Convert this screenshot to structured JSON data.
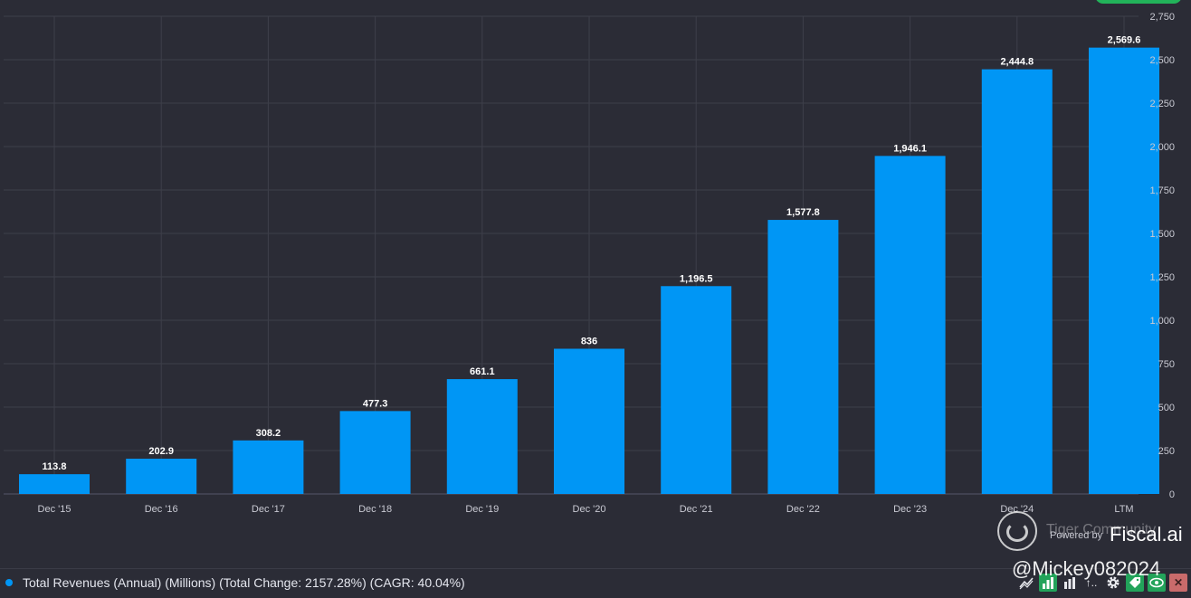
{
  "chart_data": {
    "type": "bar",
    "title": "",
    "categories": [
      "Dec '15",
      "Dec '16",
      "Dec '17",
      "Dec '18",
      "Dec '19",
      "Dec '20",
      "Dec '21",
      "Dec '22",
      "Dec '23",
      "Dec '24",
      "LTM"
    ],
    "values": [
      113.8,
      202.9,
      308.2,
      477.3,
      661.1,
      836,
      1196.5,
      1577.8,
      1946.1,
      2444.8,
      2569.6
    ],
    "value_labels": [
      "113.8",
      "202.9",
      "308.2",
      "477.3",
      "661.1",
      "836",
      "1,196.5",
      "1,577.8",
      "1,946.1",
      "2,444.8",
      "2,569.6"
    ],
    "series": [
      {
        "name": "Total Revenues (Annual) (Millions)",
        "color": "#0096f5"
      }
    ],
    "ylim": [
      0,
      2750
    ],
    "y_ticks": [
      0,
      250,
      500,
      750,
      1000,
      1250,
      1500,
      1750,
      2000,
      2250,
      2500,
      2750
    ],
    "y_tick_labels": [
      "0",
      "250",
      "500",
      "750",
      "1,000",
      "1,250",
      "1,500",
      "1,750",
      "2,000",
      "2,250",
      "2,500",
      "2,750"
    ],
    "y_axis_side": "right",
    "grid": true,
    "xlabel": "",
    "ylabel": ""
  },
  "legend": {
    "text": "Total Revenues (Annual) (Millions) (Total Change: 2157.28%) (CAGR: 40.04%)",
    "color": "#0096f5"
  },
  "branding": {
    "powered_by": "Powered by",
    "fiscal": "Fiscal.ai",
    "tiger_watermark": "Tiger Community",
    "handle": "@Mickey082024"
  },
  "toolbar": {
    "icons": [
      "trend-line-icon",
      "bar-chart-icon",
      "bar-chart-outline-icon",
      "sort-icon",
      "gear-icon",
      "tag-icon",
      "eye-icon",
      "close-icon"
    ],
    "sort_label": "↑.."
  },
  "colors": {
    "background": "#2b2c36",
    "bar": "#0096f5",
    "grid": "#3e3f4a",
    "axis_text": "#c9cad3"
  }
}
